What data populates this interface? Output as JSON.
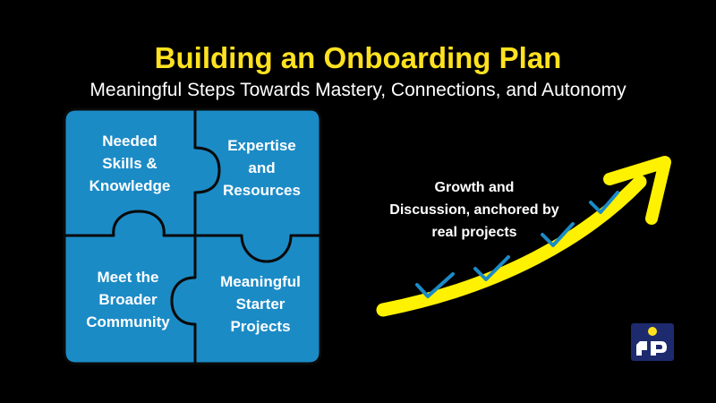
{
  "title": "Building an Onboarding Plan",
  "subtitle": "Meaningful Steps Towards Mastery, Connections, and Autonomy",
  "pieces": {
    "top_left": "Needed\nSkills &\nKnowledge",
    "top_right": "Expertise\nand\nResources",
    "bottom_left": "Meet the\nBroader\nCommunity",
    "bottom_right": "Meaningful\nStarter\nProjects"
  },
  "growth_text": "Growth and\nDiscussion, anchored by\nreal projects",
  "colors": {
    "background": "#000000",
    "title": "#FFE21F",
    "puzzle_fill": "#1B8BC6",
    "puzzle_border": "#0A0A0A",
    "arrow": "#FFF200",
    "checkmark": "#1B8BC6",
    "logo_bg": "#1E2A6E"
  },
  "icons": [
    "checkmark-icon",
    "logo-icon"
  ]
}
